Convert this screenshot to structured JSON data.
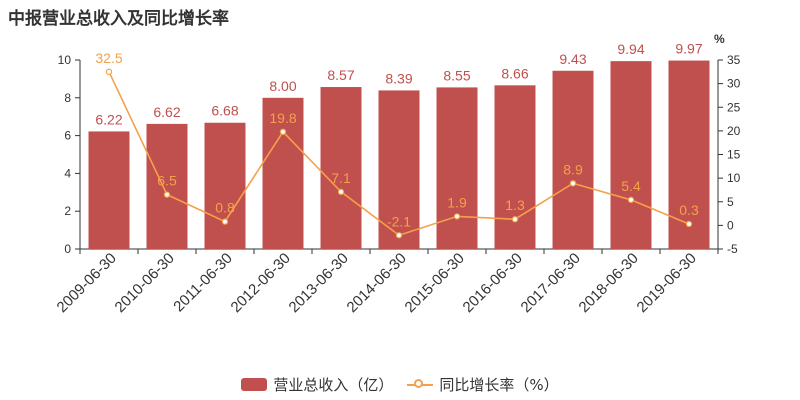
{
  "title": "中报营业总收入及同比增长率",
  "colors": {
    "bar": "#c0504d",
    "line": "#f5a04a",
    "axis": "#333333"
  },
  "chart_data": {
    "type": "bar",
    "title": "中报营业总收入及同比增长率",
    "categories": [
      "2009-06-30",
      "2010-06-30",
      "2011-06-30",
      "2012-06-30",
      "2013-06-30",
      "2014-06-30",
      "2015-06-30",
      "2016-06-30",
      "2017-06-30",
      "2018-06-30",
      "2019-06-30"
    ],
    "series": [
      {
        "name": "营业总收入（亿）",
        "type": "bar",
        "axis": "left",
        "values": [
          6.22,
          6.62,
          6.68,
          8.0,
          8.57,
          8.39,
          8.55,
          8.66,
          9.43,
          9.94,
          9.97
        ],
        "labels": [
          "6.22",
          "6.62",
          "6.68",
          "8.00",
          "8.57",
          "8.39",
          "8.55",
          "8.66",
          "9.43",
          "9.94",
          "9.97"
        ]
      },
      {
        "name": "同比增长率（%）",
        "type": "line",
        "axis": "right",
        "values": [
          32.5,
          6.5,
          0.8,
          19.8,
          7.1,
          -2.1,
          1.9,
          1.3,
          8.9,
          5.4,
          0.3
        ],
        "labels": [
          "32.5",
          "6.5",
          "0.8",
          "19.8",
          "7.1",
          "-2.1",
          "1.9",
          "1.3",
          "8.9",
          "5.4",
          "0.3"
        ]
      }
    ],
    "y_left": {
      "min": 0,
      "max": 10,
      "ticks": [
        "0",
        "2",
        "4",
        "6",
        "8",
        "10"
      ]
    },
    "y_right": {
      "min": -5,
      "max": 35,
      "unit": "%",
      "ticks": [
        "-5",
        "0",
        "5",
        "10",
        "15",
        "20",
        "25",
        "30",
        "35"
      ]
    },
    "grid": false,
    "legend": "bottom"
  }
}
